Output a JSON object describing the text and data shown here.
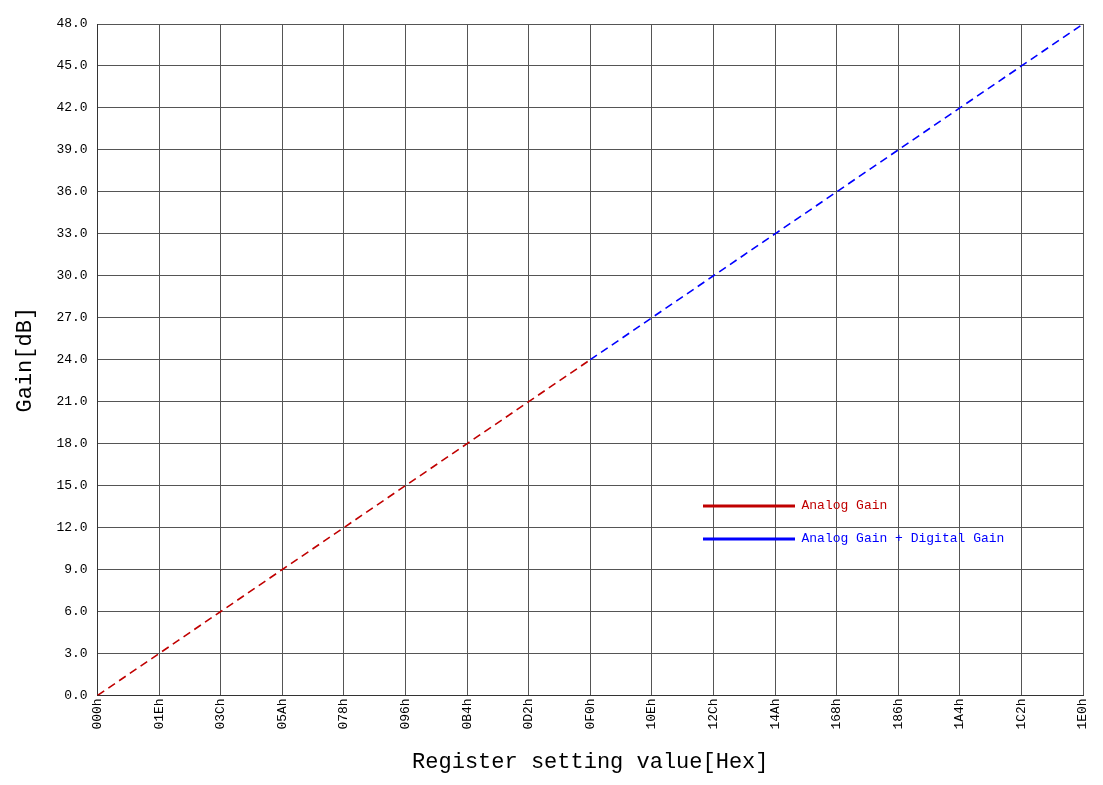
{
  "chart_data": {
    "type": "line",
    "xlabel": "Register setting value[Hex]",
    "ylabel": "Gain[dB]",
    "categories": [
      "000h",
      "01Eh",
      "03Ch",
      "05Ah",
      "078h",
      "096h",
      "0B4h",
      "0D2h",
      "0F0h",
      "10Eh",
      "12Ch",
      "14Ah",
      "168h",
      "186h",
      "1A4h",
      "1C2h",
      "1E0h"
    ],
    "ylim": [
      0,
      48
    ],
    "yticks": [
      {
        "value": 0,
        "label": "0.0"
      },
      {
        "value": 3,
        "label": "3.0"
      },
      {
        "value": 6,
        "label": "6.0"
      },
      {
        "value": 9,
        "label": "9.0"
      },
      {
        "value": 12,
        "label": "12.0"
      },
      {
        "value": 15,
        "label": "15.0"
      },
      {
        "value": 18,
        "label": "18.0"
      },
      {
        "value": 21,
        "label": "21.0"
      },
      {
        "value": 24,
        "label": "24.0"
      },
      {
        "value": 27,
        "label": "27.0"
      },
      {
        "value": 30,
        "label": "30.0"
      },
      {
        "value": 33,
        "label": "33.0"
      },
      {
        "value": 36,
        "label": "36.0"
      },
      {
        "value": 39,
        "label": "39.0"
      },
      {
        "value": 42,
        "label": "42.0"
      },
      {
        "value": 45,
        "label": "45.0"
      },
      {
        "value": 48,
        "label": "48.0"
      }
    ],
    "series": [
      {
        "name": "Analog Gain",
        "color": "#c00000",
        "values": [
          0,
          3,
          6,
          9,
          12,
          15,
          18,
          21,
          24,
          null,
          null,
          null,
          null,
          null,
          null,
          null,
          null
        ]
      },
      {
        "name": "Analog Gain + Digital Gain",
        "color": "#0000ff",
        "values": [
          null,
          null,
          null,
          null,
          null,
          null,
          null,
          null,
          24,
          27,
          30,
          33,
          36,
          39,
          42,
          45,
          48
        ]
      }
    ],
    "grid": true,
    "legend": "bottom right",
    "marker": "none",
    "line_style": "dashed"
  }
}
